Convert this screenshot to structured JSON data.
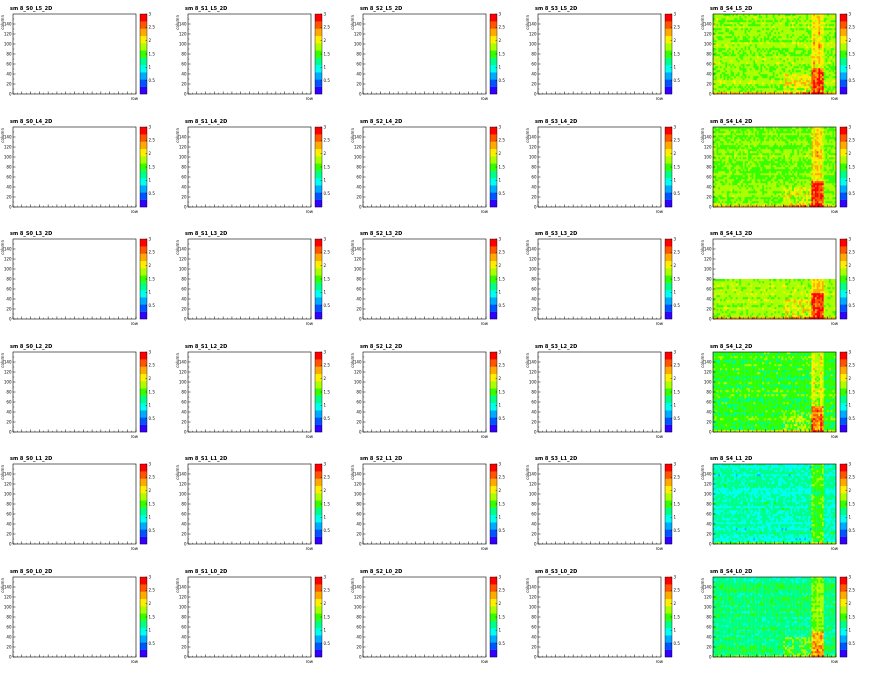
{
  "figure": {
    "rows": [
      "L5",
      "L4",
      "L3",
      "L2",
      "L1",
      "L0"
    ],
    "cols": [
      "S0",
      "S1",
      "S2",
      "S3",
      "S4"
    ]
  },
  "chart_data": {
    "type": "heatmap",
    "xlabel": "row",
    "ylabel": "column",
    "xlim": [
      0,
      140
    ],
    "ylim": [
      0,
      160
    ],
    "x_ticks": [
      0,
      10,
      20,
      30,
      40,
      50,
      60,
      70,
      80,
      90,
      100,
      110,
      120,
      130,
      140
    ],
    "y_ticks": [
      0,
      20,
      40,
      60,
      80,
      100,
      120,
      140
    ],
    "zlim": [
      0,
      3
    ],
    "z_ticks": [
      "0.5",
      "1",
      "1.5",
      "2",
      "2.5",
      "3"
    ],
    "z_tick_values": [
      0.5,
      1,
      1.5,
      2,
      2.5,
      3
    ],
    "colormap": [
      "#3300ff",
      "#0055ff",
      "#00aaff",
      "#00ffee",
      "#00ff88",
      "#33ff00",
      "#aaff00",
      "#ffee00",
      "#ffaa00",
      "#ff5500",
      "#ff0000"
    ],
    "panels": [
      {
        "title": "sm 8_S0_L5_2D",
        "filled": false
      },
      {
        "title": "sm 8_S1_L5_2D",
        "filled": false
      },
      {
        "title": "sm 8_S2_L5_2D",
        "filled": false
      },
      {
        "title": "sm 8_S3_L5_2D",
        "filled": false
      },
      {
        "title": "sm 8_S4_L5_2D",
        "filled": true,
        "profile": "upper",
        "ymax": 160,
        "base": 1.7
      },
      {
        "title": "sm 8_S0_L4_2D",
        "filled": false
      },
      {
        "title": "sm 8_S1_L4_2D",
        "filled": false
      },
      {
        "title": "sm 8_S2_L4_2D",
        "filled": false
      },
      {
        "title": "sm 8_S3_L4_2D",
        "filled": false
      },
      {
        "title": "sm 8_S4_L4_2D",
        "filled": true,
        "profile": "upper",
        "ymax": 160,
        "base": 1.65
      },
      {
        "title": "sm 8_S0_L3_2D",
        "filled": false
      },
      {
        "title": "sm 8_S1_L3_2D",
        "filled": false
      },
      {
        "title": "sm 8_S2_L3_2D",
        "filled": false
      },
      {
        "title": "sm 8_S3_L3_2D",
        "filled": false
      },
      {
        "title": "sm 8_S4_L3_2D",
        "filled": true,
        "profile": "upper",
        "ymax": 80,
        "base": 1.75
      },
      {
        "title": "sm 8_S0_L2_2D",
        "filled": false
      },
      {
        "title": "sm 8_S1_L2_2D",
        "filled": false
      },
      {
        "title": "sm 8_S2_L2_2D",
        "filled": false
      },
      {
        "title": "sm 8_S3_L2_2D",
        "filled": false
      },
      {
        "title": "sm 8_S4_L2_2D",
        "filled": true,
        "profile": "upper",
        "ymax": 160,
        "base": 1.45
      },
      {
        "title": "sm 8_S0_L1_2D",
        "filled": false
      },
      {
        "title": "sm 8_S1_L1_2D",
        "filled": false
      },
      {
        "title": "sm 8_S2_L1_2D",
        "filled": false
      },
      {
        "title": "sm 8_S3_L1_2D",
        "filled": false
      },
      {
        "title": "sm 8_S4_L1_2D",
        "filled": true,
        "profile": "low",
        "ymax": 160,
        "base": 1.1
      },
      {
        "title": "sm 8_S0_L0_2D",
        "filled": false
      },
      {
        "title": "sm 8_S1_L0_2D",
        "filled": false
      },
      {
        "title": "sm 8_S2_L0_2D",
        "filled": false
      },
      {
        "title": "sm 8_S3_L0_2D",
        "filled": false
      },
      {
        "title": "sm 8_S4_L0_2D",
        "filled": true,
        "profile": "upper",
        "ymax": 160,
        "base": 1.25
      }
    ]
  }
}
